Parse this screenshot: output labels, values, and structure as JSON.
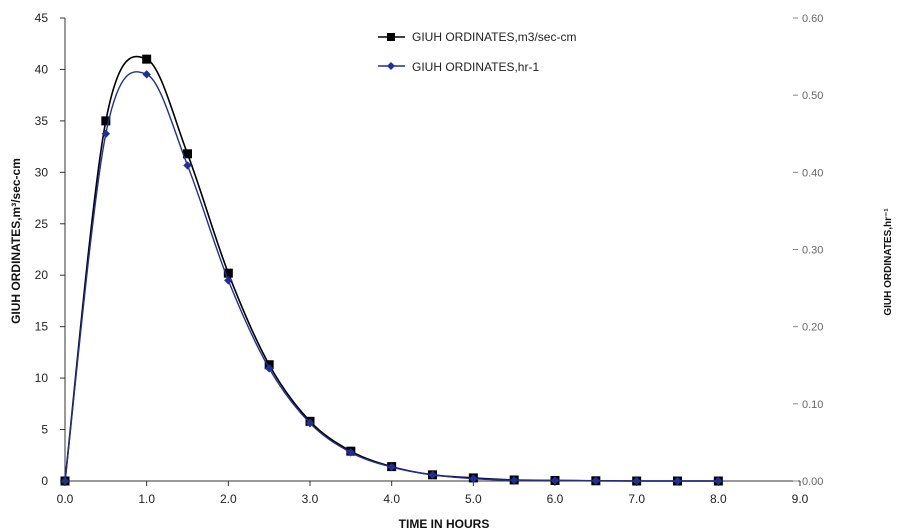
{
  "chart_data": {
    "type": "line",
    "title": "",
    "xlabel": "TIME IN HOURS",
    "ylabel_left": "GIUH ORDINATES,m³/sec-cm",
    "ylabel_right": "GIUH ORDINATES,hr⁻¹",
    "xlim": [
      0,
      9
    ],
    "ylim_left": [
      0,
      45
    ],
    "ylim_right": [
      0,
      0.6
    ],
    "x_ticks": [
      "0.0",
      "1.0",
      "2.0",
      "3.0",
      "4.0",
      "5.0",
      "6.0",
      "7.0",
      "8.0",
      "9.0"
    ],
    "y_left_ticks": [
      "0",
      "5",
      "10",
      "15",
      "20",
      "25",
      "30",
      "35",
      "40",
      "45"
    ],
    "y_right_ticks": [
      "0.00",
      "0.10",
      "0.20",
      "0.30",
      "0.40",
      "0.50",
      "0.60"
    ],
    "grid": false,
    "legend_position": "top-center",
    "series": [
      {
        "name": "GIUH ORDINATES,m3/sec-cm",
        "axis": "left",
        "color": "#000000",
        "marker": "square",
        "x": [
          0.0,
          0.5,
          1.0,
          1.5,
          2.0,
          2.5,
          3.0,
          3.5,
          4.0,
          4.5,
          5.0,
          5.5,
          6.0,
          6.5,
          7.0,
          7.5,
          8.0
        ],
        "y": [
          0.0,
          35.0,
          41.0,
          31.8,
          20.2,
          11.3,
          5.8,
          2.9,
          1.4,
          0.6,
          0.3,
          0.1,
          0.05,
          0.02,
          0.0,
          0.0,
          0.0
        ]
      },
      {
        "name": "GIUH ORDINATES,hr-1",
        "axis": "right",
        "color": "#1f2f9a",
        "marker": "diamond",
        "x": [
          0.0,
          0.5,
          1.0,
          1.5,
          2.0,
          2.5,
          3.0,
          3.5,
          4.0,
          4.5,
          5.0,
          5.5,
          6.0,
          6.5,
          7.0,
          7.5,
          8.0
        ],
        "y": [
          0.0,
          0.45,
          0.527,
          0.409,
          0.26,
          0.146,
          0.075,
          0.037,
          0.018,
          0.008,
          0.003,
          0.001,
          0.0007,
          0.0003,
          0.0,
          0.0,
          0.0
        ]
      }
    ]
  }
}
